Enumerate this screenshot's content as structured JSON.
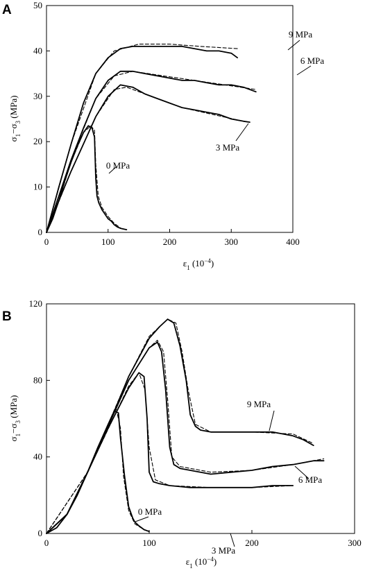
{
  "chart_data": [
    {
      "panel": "A",
      "type": "line",
      "xlabel": "ε1 (10⁻⁴)",
      "ylabel": "σ1−σ3 (MPa)",
      "xlim": [
        0,
        400
      ],
      "ylim": [
        0,
        50
      ],
      "xticks": [
        0,
        100,
        200,
        300,
        400
      ],
      "yticks": [
        0,
        10,
        20,
        30,
        40,
        50
      ],
      "grid": false,
      "annotations": [
        "0 MPa",
        "3 MPa",
        "6 MPa",
        "9 MPa"
      ],
      "series": [
        {
          "name": "0 MPa",
          "style": "measured",
          "x": [
            0,
            10,
            20,
            30,
            40,
            50,
            60,
            68,
            74,
            78,
            80,
            82,
            85,
            90,
            95,
            100,
            105,
            110,
            115,
            120,
            130
          ],
          "y": [
            0,
            3,
            7,
            11.5,
            15.5,
            19,
            22,
            23.5,
            23,
            21,
            12,
            8,
            6.5,
            5,
            4,
            3,
            2.5,
            1.7,
            1.2,
            0.9,
            0.6
          ]
        },
        {
          "name": "0 MPa",
          "style": "fitted",
          "x": [
            0,
            20,
            40,
            60,
            72,
            78,
            80,
            84,
            90,
            100,
            110,
            120
          ],
          "y": [
            0,
            7,
            15.5,
            22,
            23.5,
            22.5,
            15,
            8,
            5.5,
            3.5,
            2,
            1
          ]
        },
        {
          "name": "3 MPa",
          "style": "measured",
          "x": [
            0,
            20,
            40,
            60,
            80,
            100,
            120,
            140,
            160,
            180,
            200,
            220,
            240,
            260,
            280,
            300,
            320,
            330
          ],
          "y": [
            0,
            7,
            13.5,
            19.5,
            25.5,
            30,
            32.5,
            32,
            30.5,
            29.5,
            28.5,
            27.5,
            27,
            26.5,
            26,
            25,
            24.5,
            24.3
          ]
        },
        {
          "name": "3 MPa",
          "style": "fitted",
          "x": [
            0,
            40,
            80,
            110,
            130,
            170,
            220,
            270,
            320,
            330
          ],
          "y": [
            0,
            13.5,
            25.5,
            31.5,
            32,
            30,
            27.5,
            26,
            24.5,
            24.3
          ]
        },
        {
          "name": "6 MPa",
          "style": "measured",
          "x": [
            0,
            20,
            40,
            60,
            80,
            100,
            120,
            140,
            160,
            180,
            200,
            220,
            240,
            260,
            280,
            300,
            320,
            340
          ],
          "y": [
            0,
            8,
            16,
            23,
            29.5,
            33.5,
            35.5,
            35.5,
            35,
            34.5,
            34,
            33.5,
            33.5,
            33,
            32.5,
            32.5,
            32,
            31
          ]
        },
        {
          "name": "6 MPa",
          "style": "fitted",
          "x": [
            0,
            40,
            80,
            110,
            140,
            190,
            240,
            290,
            340
          ],
          "y": [
            0,
            16,
            29.5,
            34.5,
            35.5,
            34.5,
            33.5,
            32.5,
            31.5
          ]
        },
        {
          "name": "9 MPa",
          "style": "measured",
          "x": [
            0,
            20,
            40,
            60,
            80,
            100,
            120,
            140,
            160,
            180,
            200,
            220,
            240,
            260,
            280,
            300,
            310
          ],
          "y": [
            0,
            10,
            19.5,
            28.5,
            35,
            38.5,
            40.5,
            41,
            41,
            41,
            41,
            41,
            40.5,
            40,
            40,
            39.5,
            38.5
          ]
        },
        {
          "name": "9 MPa",
          "style": "fitted",
          "x": [
            0,
            40,
            80,
            110,
            150,
            200,
            250,
            310
          ],
          "y": [
            0,
            19.5,
            35,
            40,
            41.5,
            41.5,
            41,
            40.5
          ]
        }
      ]
    },
    {
      "panel": "B",
      "type": "line",
      "xlabel": "ε1 (10⁻⁴)",
      "ylabel": "σ1−σ3 (MPa)",
      "xlim": [
        0,
        300
      ],
      "ylim": [
        0,
        120
      ],
      "xticks": [
        0,
        100,
        200,
        300
      ],
      "yticks": [
        0,
        40,
        80,
        120
      ],
      "grid": false,
      "annotations": [
        "0 MPa",
        "3 MPa",
        "6 MPa",
        "9 MPa"
      ],
      "series": [
        {
          "name": "0 MPa",
          "style": "measured",
          "x": [
            0,
            10,
            20,
            30,
            40,
            50,
            60,
            66,
            70,
            72,
            76,
            80,
            84,
            86,
            90,
            95,
            100
          ],
          "y": [
            0,
            3,
            10,
            20,
            32,
            45,
            57,
            64,
            63,
            50,
            30,
            14,
            8,
            6,
            4,
            2,
            1
          ]
        },
        {
          "name": "0 MPa",
          "style": "fitted",
          "x": [
            0,
            20,
            40,
            60,
            68,
            72,
            75,
            80,
            86,
            95
          ],
          "y": [
            0,
            10,
            32,
            57,
            65,
            55,
            30,
            12,
            5,
            2
          ]
        },
        {
          "name": "3 MPa",
          "style": "measured",
          "x": [
            0,
            20,
            40,
            60,
            80,
            90,
            95,
            98,
            100,
            104,
            110,
            120,
            140,
            160,
            180,
            200,
            220,
            240
          ],
          "y": [
            0,
            10,
            32,
            55,
            76,
            84,
            82,
            60,
            32,
            27,
            26,
            25,
            24,
            24,
            24,
            24,
            25,
            25
          ]
        },
        {
          "name": "3 MPa",
          "style": "fitted",
          "x": [
            0,
            40,
            80,
            90,
            96,
            100,
            106,
            120,
            160,
            200,
            240
          ],
          "y": [
            0,
            32,
            77,
            84,
            75,
            45,
            28,
            25,
            24,
            24,
            25
          ]
        },
        {
          "name": "6 MPa",
          "style": "measured",
          "x": [
            0,
            20,
            40,
            60,
            80,
            100,
            108,
            112,
            116,
            120,
            124,
            130,
            140,
            150,
            160,
            180,
            200,
            220,
            240,
            260,
            270
          ],
          "y": [
            0,
            10,
            32,
            56,
            80,
            97,
            100,
            95,
            75,
            45,
            36,
            34,
            33,
            32,
            31,
            32,
            33,
            35,
            36,
            38,
            38
          ]
        },
        {
          "name": "6 MPa",
          "style": "fitted",
          "x": [
            0,
            40,
            80,
            100,
            108,
            114,
            118,
            122,
            130,
            160,
            200,
            240,
            270
          ],
          "y": [
            0,
            32,
            80,
            97,
            101,
            95,
            70,
            40,
            35,
            32,
            33,
            36,
            39
          ]
        },
        {
          "name": "9 MPa",
          "style": "measured",
          "x": [
            0,
            20,
            40,
            60,
            80,
            100,
            110,
            118,
            124,
            130,
            136,
            140,
            145,
            150,
            160,
            180,
            200,
            220,
            240,
            250,
            260
          ],
          "y": [
            0,
            10,
            32,
            56,
            82,
            102,
            108,
            112,
            110,
            98,
            80,
            62,
            56,
            54,
            53,
            53,
            53,
            53,
            51,
            49,
            46
          ]
        },
        {
          "name": "9 MPa",
          "style": "fitted",
          "x": [
            0,
            40,
            80,
            100,
            118,
            126,
            132,
            138,
            145,
            160,
            200,
            240,
            260
          ],
          "y": [
            0,
            32,
            82,
            103,
            112,
            110,
            95,
            75,
            57,
            53,
            53,
            52,
            47
          ]
        }
      ]
    }
  ]
}
